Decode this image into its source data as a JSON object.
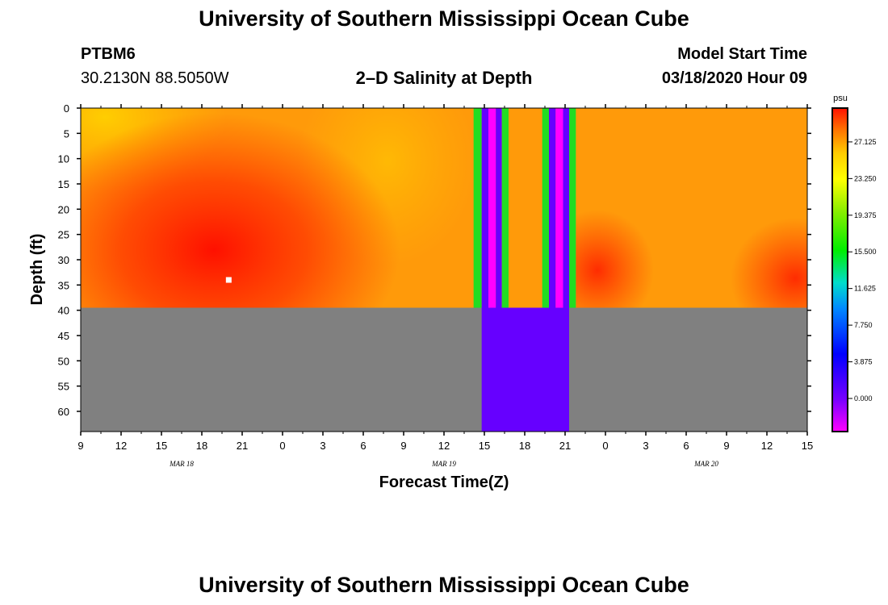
{
  "header": {
    "top_title": "University of Southern Mississippi Ocean Cube",
    "station": "PTBM6",
    "coords": "30.2130N 88.5050W",
    "plot_title": "2–D Salinity at Depth",
    "start_label": "Model Start Time",
    "start_value": "03/18/2020 Hour 09",
    "bottom_title": "University of Southern Mississippi Ocean Cube"
  },
  "chart_data": {
    "type": "heatmap",
    "title": "2–D Salinity at Depth",
    "xlabel": "Forecast Time(Z)",
    "ylabel": "Depth (ft)",
    "x_range_hours": [
      0,
      54
    ],
    "x_ticks": [
      "9",
      "12",
      "15",
      "18",
      "21",
      "0",
      "3",
      "6",
      "9",
      "12",
      "15",
      "18",
      "21",
      "0",
      "3",
      "6",
      "9",
      "12",
      "15"
    ],
    "date_labels": [
      {
        "text": "MAR 18",
        "hour": 7.5
      },
      {
        "text": "MAR 19",
        "hour": 27
      },
      {
        "text": "MAR 20",
        "hour": 46.5
      }
    ],
    "y_ticks": [
      0,
      5,
      10,
      15,
      20,
      25,
      30,
      35,
      40,
      45,
      50,
      55,
      60
    ],
    "y_range": [
      0,
      64
    ],
    "water_bottom_ft": 39.5,
    "seabed_color": "#808080",
    "bad_data_color": "#6600ff",
    "missing_block_hours": [
      29.8,
      36.3
    ],
    "missing_stripes": [
      {
        "start": 29.2,
        "end": 29.8,
        "color": "#22dd22"
      },
      {
        "start": 29.8,
        "end": 30.3,
        "color": "#6600ff"
      },
      {
        "start": 30.3,
        "end": 30.85,
        "color": "#ff00ff"
      },
      {
        "start": 30.85,
        "end": 31.3,
        "color": "#6600ff"
      },
      {
        "start": 31.3,
        "end": 31.8,
        "color": "#22dd22"
      },
      {
        "start": 34.3,
        "end": 34.8,
        "color": "#22dd22"
      },
      {
        "start": 34.8,
        "end": 35.3,
        "color": "#6600ff"
      },
      {
        "start": 35.3,
        "end": 35.85,
        "color": "#ff00ff"
      },
      {
        "start": 35.85,
        "end": 36.3,
        "color": "#6600ff"
      },
      {
        "start": 36.3,
        "end": 36.8,
        "color": "#22dd22"
      }
    ],
    "marker": {
      "hour": 11,
      "depth_ft": 34
    },
    "colorbar": {
      "unit": "psu",
      "labels": [
        "27.125",
        "23.250",
        "19.375",
        "15.500",
        "11.625",
        "7.750",
        "3.875",
        "0.000"
      ],
      "min": -3.5,
      "max": 30.7
    }
  }
}
